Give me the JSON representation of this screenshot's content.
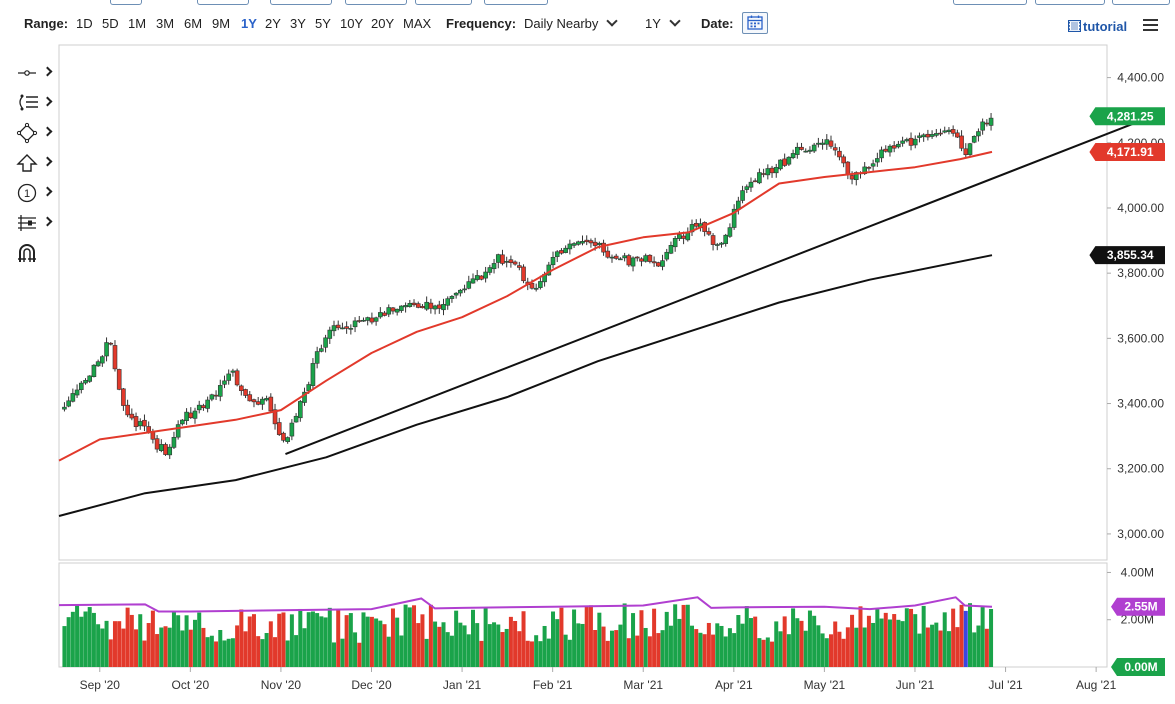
{
  "toolbar": {
    "range_label": "Range:",
    "ranges": [
      "1D",
      "5D",
      "1M",
      "3M",
      "6M",
      "9M",
      "1Y",
      "2Y",
      "3Y",
      "5Y",
      "10Y",
      "20Y",
      "MAX"
    ],
    "selected_range": "1Y",
    "frequency_label": "Frequency:",
    "frequency_value": "Daily Nearby",
    "period_value": "1Y",
    "date_label": "Date:",
    "tutorial_label": "tutorial",
    "icons": [
      "calendar-icon",
      "film-icon",
      "hamburger-menu-icon"
    ]
  },
  "left_tools": [
    "crosshair-tool",
    "fibonacci-tool",
    "shapes-tool",
    "arrow-tool",
    "counter-tool",
    "measure-tool",
    "magnet-tool"
  ],
  "chart_data": {
    "type": "candlestick",
    "price_axis": {
      "ylim": [
        2920,
        4500
      ],
      "ticks": [
        "4,400.00",
        "4,200.00",
        "4,000.00",
        "3,800.00",
        "3,600.00",
        "3,400.00",
        "3,200.00",
        "3,000.00"
      ],
      "tick_values": [
        4400,
        4200,
        4000,
        3800,
        3600,
        3400,
        3200,
        3000
      ]
    },
    "volume_axis": {
      "ylim": [
        0,
        4.4
      ],
      "ticks": [
        "4.00M",
        "2.00M"
      ],
      "tick_values": [
        4.0,
        2.0
      ]
    },
    "x_axis": {
      "labels": [
        "Sep '20",
        "Oct '20",
        "Nov '20",
        "Dec '20",
        "Jan '21",
        "Feb '21",
        "Mar '21",
        "Apr '21",
        "May '21",
        "Jun '21",
        "Jul '21",
        "Aug '21"
      ],
      "month_index": [
        0,
        1,
        2,
        3,
        4,
        5,
        6,
        7,
        8,
        9,
        10,
        11
      ],
      "xlim_months": [
        -0.45,
        11.12
      ],
      "last_bar_month": 9.85
    },
    "price_tags": [
      {
        "label": "4,281.25",
        "value": 4281.25,
        "color": "#1aa34a"
      },
      {
        "label": "4,171.91",
        "value": 4171.91,
        "color": "#e2392b"
      },
      {
        "label": "3,855.34",
        "value": 3855.34,
        "color": "#111111"
      }
    ],
    "volume_tags": [
      {
        "label": "2.55M",
        "value": 2.55,
        "color": "#b03fd0"
      },
      {
        "label": "0.00M",
        "value": 0.0,
        "color": "#1aa34a"
      }
    ],
    "moving_averages": [
      {
        "type": "ma50",
        "color": "#e2392b",
        "points_month": [
          -0.45,
          0.0,
          0.5,
          1.0,
          1.5,
          2.0,
          2.5,
          3.0,
          3.5,
          4.0,
          4.5,
          5.0,
          5.5,
          6.0,
          6.5,
          7.0,
          7.5,
          8.0,
          8.5,
          9.0,
          9.5,
          9.85
        ],
        "points_value": [
          3225,
          3290,
          3310,
          3330,
          3350,
          3380,
          3470,
          3555,
          3620,
          3665,
          3730,
          3810,
          3880,
          3910,
          3925,
          3985,
          4075,
          4095,
          4110,
          4125,
          4150,
          4172
        ]
      },
      {
        "type": "ma200",
        "color": "#111111",
        "points_month": [
          -0.45,
          0.5,
          1.5,
          2.5,
          3.5,
          4.5,
          5.5,
          6.5,
          7.5,
          8.5,
          9.85
        ],
        "points_value": [
          3055,
          3125,
          3165,
          3235,
          3335,
          3420,
          3530,
          3620,
          3710,
          3780,
          3855
        ]
      }
    ],
    "trendline": {
      "color": "#111111",
      "from": {
        "month": 2.05,
        "value": 3245
      },
      "to": {
        "month": 11.7,
        "value": 4290
      }
    },
    "volume_average": {
      "color": "#b03fd0",
      "points_month": [
        -0.45,
        0.5,
        0.65,
        1.0,
        2.0,
        3.0,
        3.55,
        3.7,
        4.0,
        5.0,
        6.0,
        6.6,
        6.75,
        7.0,
        8.0,
        8.5,
        9.0,
        9.45,
        9.55,
        9.85
      ],
      "points_value": [
        2.62,
        2.65,
        2.35,
        2.35,
        2.4,
        2.45,
        2.9,
        2.48,
        2.5,
        2.55,
        2.6,
        2.95,
        2.5,
        2.52,
        2.55,
        2.45,
        2.6,
        2.95,
        2.6,
        2.55
      ]
    },
    "volume_highlight": {
      "month": 9.55,
      "color": "#3b46e0"
    },
    "price_path": {
      "months": [
        -0.45,
        -0.3,
        -0.1,
        0.05,
        0.12,
        0.2,
        0.35,
        0.5,
        0.6,
        0.75,
        0.85,
        0.95,
        1.0,
        1.15,
        1.35,
        1.45,
        1.55,
        1.7,
        1.85,
        1.95,
        2.0,
        2.1,
        2.25,
        2.4,
        2.55,
        2.75,
        2.95,
        3.2,
        3.5,
        3.75,
        4.0,
        4.2,
        4.4,
        4.6,
        4.75,
        4.85,
        5.0,
        5.25,
        5.5,
        5.7,
        5.85,
        6.0,
        6.15,
        6.3,
        6.5,
        6.65,
        6.8,
        6.95,
        7.1,
        7.25,
        7.5,
        7.7,
        8.0,
        8.15,
        8.25,
        8.4,
        8.6,
        8.8,
        9.0,
        9.2,
        9.4,
        9.55,
        9.65,
        9.75,
        9.85
      ],
      "values": [
        3360,
        3420,
        3490,
        3560,
        3600,
        3450,
        3340,
        3340,
        3280,
        3250,
        3330,
        3360,
        3370,
        3400,
        3450,
        3520,
        3440,
        3410,
        3400,
        3330,
        3270,
        3310,
        3420,
        3560,
        3630,
        3640,
        3650,
        3690,
        3710,
        3690,
        3750,
        3790,
        3850,
        3830,
        3740,
        3760,
        3860,
        3900,
        3890,
        3840,
        3840,
        3850,
        3820,
        3900,
        3930,
        3950,
        3870,
        3950,
        4050,
        4090,
        4130,
        4180,
        4200,
        4170,
        4100,
        4100,
        4160,
        4200,
        4210,
        4230,
        4250,
        4170,
        4230,
        4260,
        4281
      ]
    }
  }
}
